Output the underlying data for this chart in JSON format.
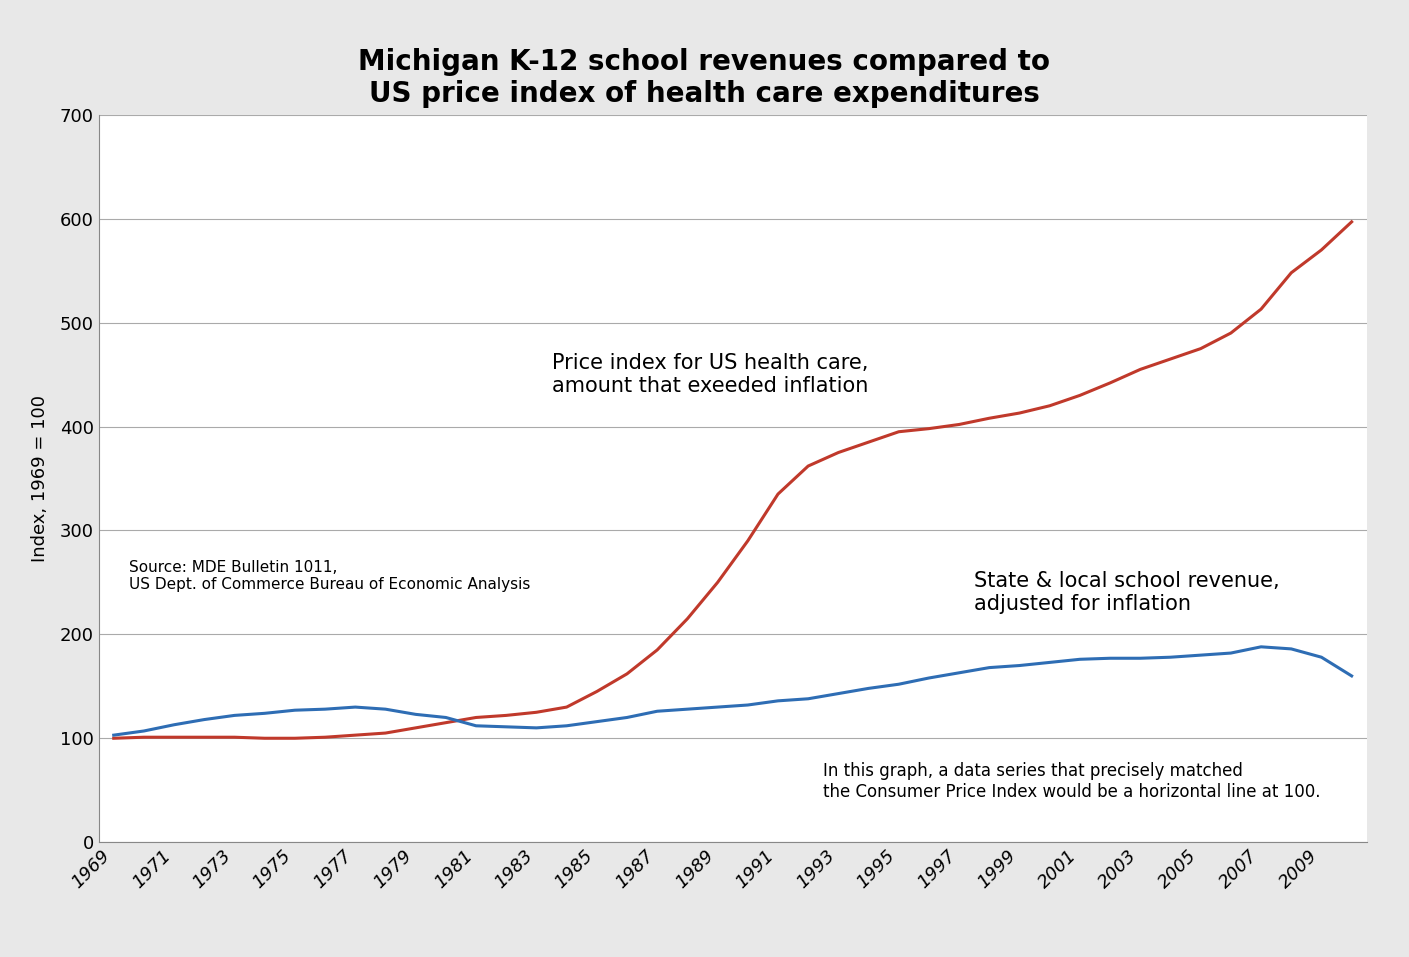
{
  "title_line1": "Michigan K-12 school revenues compared to",
  "title_line2": "US price index of health care expenditures",
  "ylabel": "Index, 1969 = 100",
  "xlim": [
    1968.5,
    2010.5
  ],
  "ylim": [
    0,
    700
  ],
  "yticks": [
    0,
    100,
    200,
    300,
    400,
    500,
    600,
    700
  ],
  "xticks": [
    1969,
    1971,
    1973,
    1975,
    1977,
    1979,
    1981,
    1983,
    1985,
    1987,
    1989,
    1991,
    1993,
    1995,
    1997,
    1999,
    2001,
    2003,
    2005,
    2007,
    2009
  ],
  "school_revenue_years": [
    1969,
    1970,
    1971,
    1972,
    1973,
    1974,
    1975,
    1976,
    1977,
    1978,
    1979,
    1980,
    1981,
    1982,
    1983,
    1984,
    1985,
    1986,
    1987,
    1988,
    1989,
    1990,
    1991,
    1992,
    1993,
    1994,
    1995,
    1996,
    1997,
    1998,
    1999,
    2000,
    2001,
    2002,
    2003,
    2004,
    2005,
    2006,
    2007,
    2008,
    2009,
    2010
  ],
  "school_revenue_values": [
    103,
    107,
    113,
    118,
    122,
    124,
    127,
    128,
    130,
    128,
    123,
    120,
    112,
    111,
    110,
    112,
    116,
    120,
    126,
    128,
    130,
    132,
    136,
    138,
    143,
    148,
    152,
    158,
    163,
    168,
    170,
    173,
    176,
    177,
    177,
    178,
    180,
    182,
    188,
    186,
    178,
    160
  ],
  "health_care_years": [
    1969,
    1970,
    1971,
    1972,
    1973,
    1974,
    1975,
    1976,
    1977,
    1978,
    1979,
    1980,
    1981,
    1982,
    1983,
    1984,
    1985,
    1986,
    1987,
    1988,
    1989,
    1990,
    1991,
    1992,
    1993,
    1994,
    1995,
    1996,
    1997,
    1998,
    1999,
    2000,
    2001,
    2002,
    2003,
    2004,
    2005,
    2006,
    2007,
    2008,
    2009,
    2010
  ],
  "health_care_values": [
    100,
    101,
    101,
    101,
    101,
    100,
    100,
    101,
    103,
    105,
    110,
    115,
    120,
    122,
    125,
    130,
    145,
    162,
    185,
    215,
    250,
    290,
    335,
    362,
    375,
    385,
    395,
    398,
    402,
    408,
    413,
    420,
    430,
    442,
    455,
    465,
    475,
    490,
    513,
    548,
    570,
    597
  ],
  "school_color": "#2e6db4",
  "health_color": "#c0392b",
  "school_label_text": "State & local school revenue,\nadjusted for inflation",
  "health_label_text": "Price index for US health care,\namount that exeeded inflation",
  "source_text": "Source: MDE Bulletin 1011,\nUS Dept. of Commerce Bureau of Economic Analysis",
  "annotation_text": "In this graph, a data series that precisely matched\nthe Consumer Price Index would be a horizontal line at 100.",
  "background_color": "#ffffff",
  "fig_background_color": "#e8e8e8",
  "line_width": 2.2,
  "title_fontsize": 20,
  "axis_label_fontsize": 13,
  "tick_fontsize": 13,
  "annotation_fontsize": 12,
  "source_fontsize": 11,
  "label_fontsize": 15
}
